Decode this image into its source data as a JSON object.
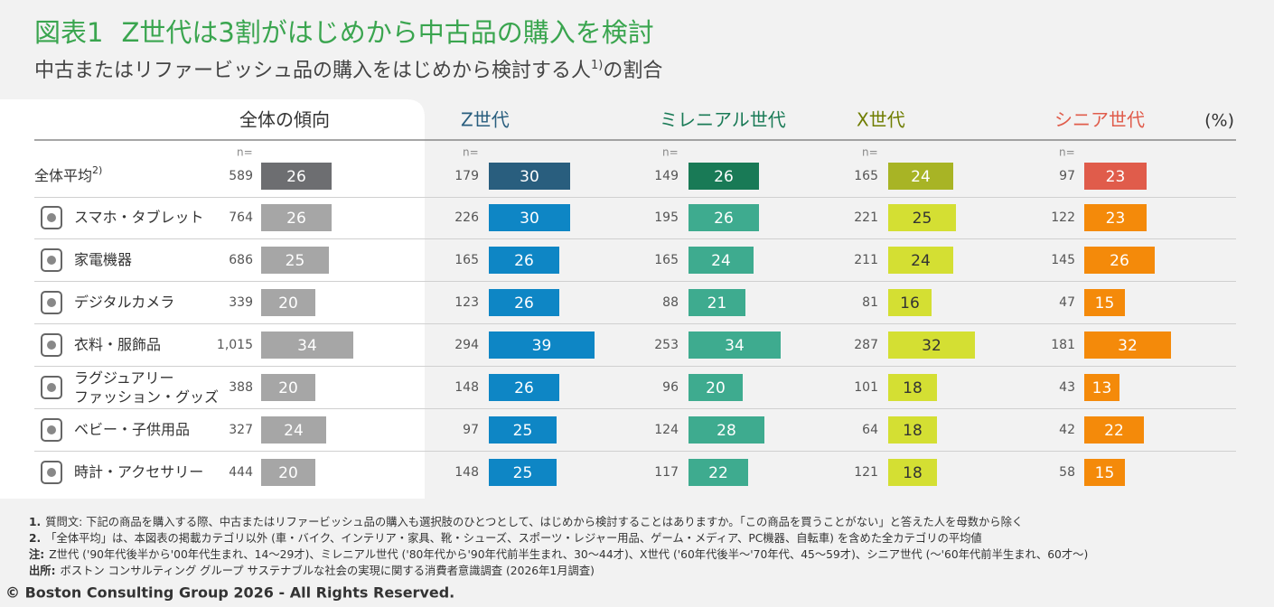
{
  "title": {
    "label": "図表1",
    "text": "Z世代は3割がはじめから中古品の購入を検討"
  },
  "subtitle": {
    "text": "中古またはリファービッシュ品の購入をはじめから検討する人",
    "note": "1)",
    "after": "の割合"
  },
  "table": {
    "columns": [
      "全体の傾向",
      "Z世代",
      "ミレニアル世代",
      "X世代",
      "シニア世代"
    ],
    "unit": "(%)",
    "n_label": "n=",
    "rows": [
      {
        "label": [
          "全体平均"
        ],
        "note": "2)",
        "n": [
          "589",
          "179",
          "149",
          "165",
          "97"
        ],
        "values": [
          26,
          30,
          26,
          24,
          23
        ]
      },
      {
        "label": [
          "スマホ・タブレット"
        ],
        "n": [
          "764",
          "226",
          "195",
          "221",
          "122"
        ],
        "values": [
          26,
          30,
          26,
          25,
          23
        ]
      },
      {
        "label": [
          "家電機器"
        ],
        "n": [
          "686",
          "165",
          "165",
          "211",
          "145"
        ],
        "values": [
          25,
          26,
          24,
          24,
          26
        ]
      },
      {
        "label": [
          "デジタルカメラ"
        ],
        "n": [
          "339",
          "123",
          "88",
          "81",
          "47"
        ],
        "values": [
          20,
          26,
          21,
          16,
          15
        ]
      },
      {
        "label": [
          "衣料・服飾品"
        ],
        "n": [
          "1,015",
          "294",
          "253",
          "287",
          "181"
        ],
        "values": [
          34,
          39,
          34,
          32,
          32
        ]
      },
      {
        "label": [
          "ラグジュアリー",
          "ファッション・グッズ"
        ],
        "n": [
          "388",
          "148",
          "96",
          "101",
          "43"
        ],
        "values": [
          20,
          26,
          20,
          18,
          13
        ]
      },
      {
        "label": [
          "ベビー・子供用品"
        ],
        "n": [
          "327",
          "97",
          "124",
          "64",
          "42"
        ],
        "values": [
          24,
          25,
          28,
          18,
          22
        ]
      },
      {
        "label": [
          "時計・アクセサリー"
        ],
        "n": [
          "444",
          "148",
          "117",
          "121",
          "58"
        ],
        "values": [
          20,
          25,
          22,
          18,
          15
        ]
      }
    ]
  },
  "notes": [
    {
      "prefix": "1.",
      "text": "質問文: 下記の商品を購入する際、中古またはリファービッシュ品の購入も選択肢のひとつとして、はじめから検討することはありますか。「この商品を買うことがない」と答えた人を母数から除く"
    },
    {
      "prefix": "2.",
      "text": "「全体平均」は、本図表の掲載カテゴリ以外 (車・バイク、インテリア・家具、靴・シューズ、スポーツ・レジャー用品、ゲーム・メディア、PC機器、自転車) を含めた全カテゴリの平均値"
    },
    {
      "prefix": "注:",
      "text": "Z世代 ('90年代後半から'00年代生まれ、14～29才)、ミレニアル世代 ('80年代から'90年代前半生まれ、30～44才)、X世代 ('60年代後半～'70年代、45～59才)、シニア世代 (～'60年代前半生まれ、60才～)"
    },
    {
      "prefix": "出所:",
      "text": "ボストン コンサルティング グループ サステナブルな社会の実現に関する消費者意識調査 (2026年1月調査)"
    }
  ],
  "copyright": "© Boston Consulting Group 2026 - All Rights Reserved."
}
